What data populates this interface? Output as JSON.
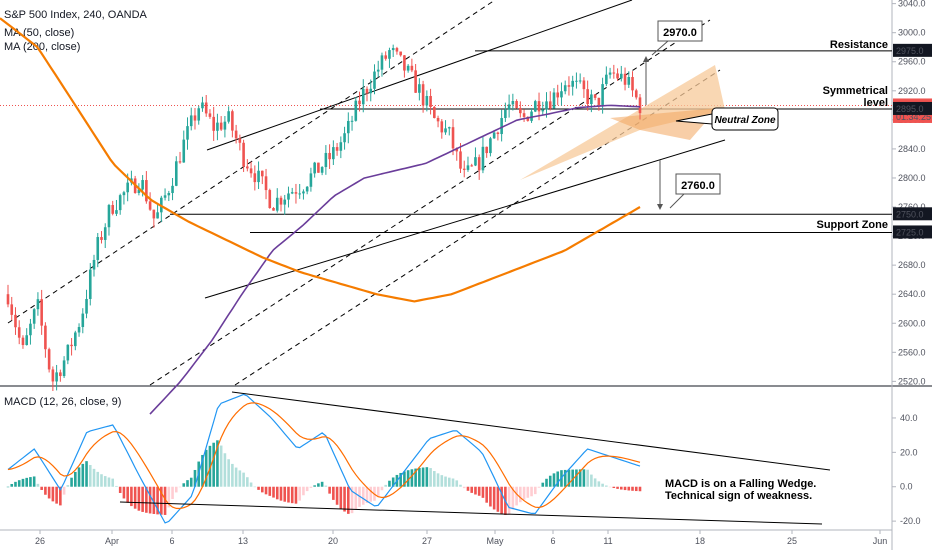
{
  "header": {
    "instrument": "S&P 500 Index, 240, OANDA",
    "ma50": "MA (50, close)",
    "ma200": "MA (200, close)",
    "macd": "MACD (12, 26, close, 9)"
  },
  "chart_data": {
    "type": "candlestick",
    "x_ticks": [
      "26",
      "Apr",
      "6",
      "13",
      "20",
      "27",
      "May",
      "6",
      "11",
      "18",
      "25",
      "Jun"
    ],
    "price_axis": {
      "ticks": [
        3040.0,
        3000.0,
        2960.0,
        2920.0,
        2880.0,
        2840.0,
        2800.0,
        2760.0,
        2720.0,
        2680.0,
        2640.0,
        2600.0,
        2560.0,
        2520.0
      ],
      "tick_labels": [
        "3040.0",
        "3000.0",
        "2960.0",
        "2920.0",
        "2880.0",
        "2840.0",
        "2800.0",
        "2760.0",
        "2720.0",
        "2680.0",
        "2640.0",
        "2600.0",
        "2560.0",
        "2520.0"
      ],
      "range": [
        2515,
        3045
      ]
    },
    "macd_axis": {
      "ticks": [
        40.0,
        20.0,
        0.0,
        -20.0
      ],
      "tick_labels": [
        "40.0",
        "20.0",
        "0.0",
        "-20.0"
      ],
      "range": [
        -24,
        58
      ]
    },
    "price_labels": [
      {
        "value": 2975.0,
        "text": "2975.0",
        "color": "#131722"
      },
      {
        "value": 2899.8,
        "text": "2899.8",
        "color": "#ef5350"
      },
      {
        "value": 2884.0,
        "text": "01:34:25",
        "color": "#ef5350"
      },
      {
        "value": 2895.0,
        "text": "2895.0",
        "color": "#131722"
      },
      {
        "value": 2750.0,
        "text": "2750.0",
        "color": "#131722"
      },
      {
        "value": 2725.0,
        "text": "2725.0",
        "color": "#131722"
      }
    ],
    "annotations": {
      "resistance": "Resistance",
      "symmetrical_1": "Symmetrical",
      "symmetrical_2": "level",
      "support": "Support Zone",
      "neutral": "Neutral Zone",
      "target_up": "2970.0",
      "target_down": "2760.0",
      "macd_note_1": "MACD is on a Falling Wedge.",
      "macd_note_2": "Technical sign of weakness."
    },
    "levels": {
      "resistance": 2975,
      "symmetrical": 2895,
      "support_top": 2750,
      "support_bottom": 2725,
      "last": 2899.8
    },
    "candles_anchor_closes": [
      2640,
      2560,
      2625,
      2520,
      2555,
      2610,
      2700,
      2760,
      2780,
      2800,
      2740,
      2790,
      2850,
      2900,
      2870,
      2880,
      2830,
      2800,
      2765,
      2780,
      2790,
      2810,
      2830,
      2860,
      2910,
      2945,
      2975,
      2950,
      2920,
      2880,
      2860,
      2800,
      2820,
      2860,
      2900,
      2880,
      2905,
      2910,
      2935,
      2920,
      2900,
      2945,
      2935,
      2900
    ],
    "ma50_anchors": [
      2475,
      2520,
      2575,
      2640,
      2700,
      2735,
      2775,
      2800,
      2810,
      2820,
      2840,
      2860,
      2880,
      2888,
      2897,
      2900,
      2898
    ],
    "ma200_anchors": [
      3020,
      2980,
      2900,
      2820,
      2770,
      2740,
      2715,
      2690,
      2670,
      2655,
      2640,
      2630,
      2640,
      2660,
      2680,
      2700,
      2730,
      2760
    ],
    "macd_anchors": [
      10,
      22,
      -2,
      32,
      36,
      6,
      -22,
      -5,
      48,
      54,
      40,
      22,
      32,
      -2,
      -12,
      8,
      28,
      33,
      20,
      -12,
      -16,
      5,
      22,
      17,
      12
    ],
    "colors": {
      "up": "#26a69a",
      "down": "#ef5350",
      "ma50": "#6a3d9a",
      "ma200": "#f57c00",
      "macd": "#2196f3",
      "signal": "#ff6d00"
    }
  }
}
